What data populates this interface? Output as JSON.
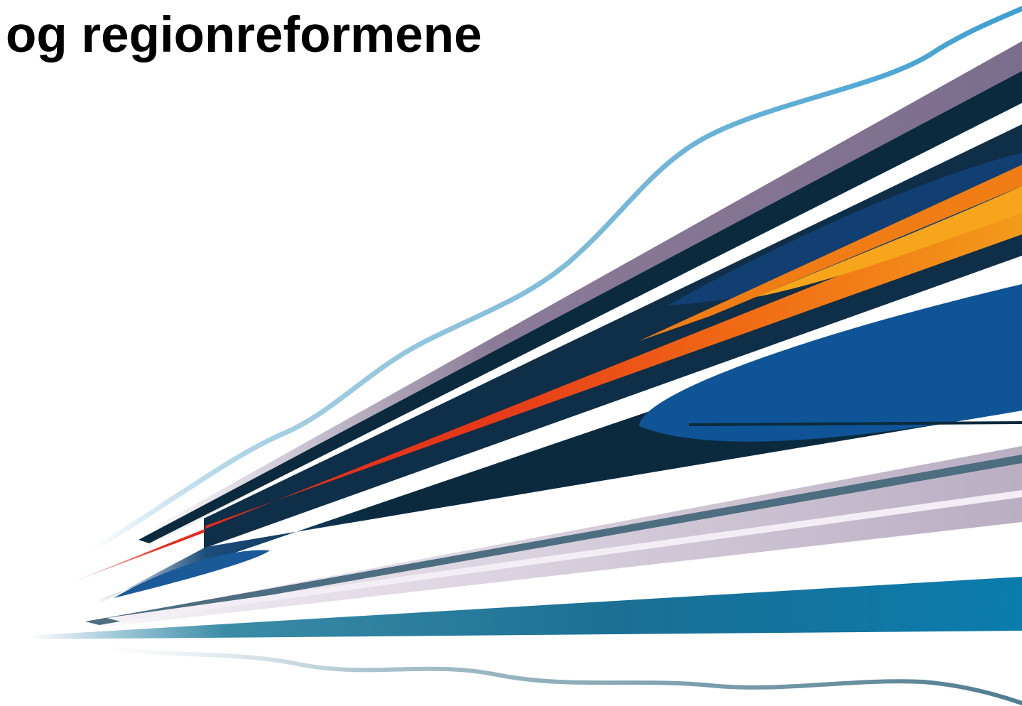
{
  "slide": {
    "title": "og regionreformene"
  },
  "graphic": {
    "name": "speed-lines-decoration",
    "colors": {
      "light_blue": "#4aa3cf",
      "mauve": "#8a7b98",
      "navy_dark": "#0b2a3d",
      "navy": "#123d6e",
      "royal_blue": "#0f4f8f",
      "orange": "#f07d14",
      "amber": "#f7a51b",
      "red": "#e5281c",
      "lilac": "#c3b6c8",
      "teal": "#1f7ea8",
      "slate_teal": "#5b8596"
    }
  }
}
